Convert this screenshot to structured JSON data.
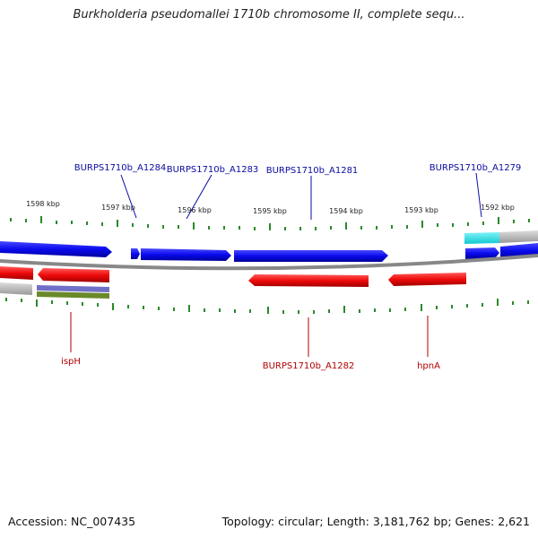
{
  "title": "Burkholderia pseudomallei 1710b chromosome II, complete sequ...",
  "footer": {
    "accession": "Accession: NC_007435",
    "summary": "Topology: circular; Length: 3,181,762 bp; Genes: 2,621"
  },
  "colors": {
    "forward_gene": "#1010ee",
    "reverse_gene": "#ee1010",
    "forward_label": "#0a0aa0",
    "reverse_label": "#b00000",
    "tick": "#2a8a2a",
    "backbone": "#888888",
    "cyan_feature": "#20d8e0",
    "gray_feature": "#bbbbbb",
    "purple_feature": "#7070c8",
    "olive_feature": "#6a8a2a"
  },
  "ticks": [
    {
      "label": "1598 kbp"
    },
    {
      "label": "1597 kbp"
    },
    {
      "label": "1596 kbp"
    },
    {
      "label": "1595 kbp"
    },
    {
      "label": "1594 kbp"
    },
    {
      "label": "1593 kbp"
    },
    {
      "label": "1592 kbp"
    }
  ],
  "genes_forward_labels": [
    {
      "name": "BURPS1710b_A1284"
    },
    {
      "name": "BURPS1710b_A1283"
    },
    {
      "name": "BURPS1710b_A1281"
    },
    {
      "name": "BURPS1710b_A1279"
    }
  ],
  "genes_reverse_labels": [
    {
      "name": "ispH"
    },
    {
      "name": "BURPS1710b_A1282"
    },
    {
      "name": "hpnA"
    }
  ]
}
